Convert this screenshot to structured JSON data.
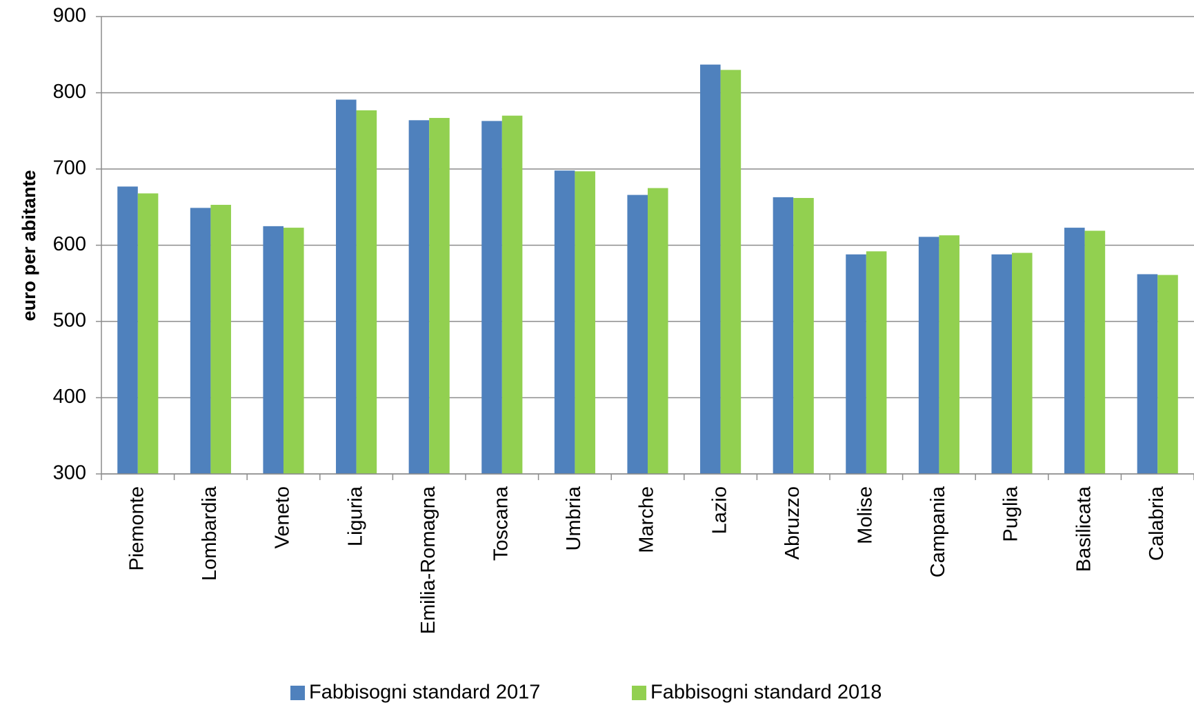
{
  "chart_data": {
    "type": "bar",
    "y_label": "euro per abitante",
    "categories": [
      "Piemonte",
      "Lombardia",
      "Veneto",
      "Liguria",
      "Emilia-Romagna",
      "Toscana",
      "Umbria",
      "Marche",
      "Lazio",
      "Abruzzo",
      "Molise",
      "Campania",
      "Puglia",
      "Basilicata",
      "Calabria"
    ],
    "series": [
      {
        "name": "Fabbisogni standard 2017",
        "color": "#4f81bd",
        "values": [
          677,
          649,
          625,
          791,
          764,
          763,
          698,
          666,
          837,
          663,
          588,
          611,
          588,
          623,
          562
        ]
      },
      {
        "name": "Fabbisogni standard 2018",
        "color": "#92d050",
        "values": [
          668,
          653,
          623,
          777,
          767,
          770,
          697,
          675,
          830,
          662,
          592,
          613,
          590,
          619,
          561
        ]
      }
    ],
    "ylim": [
      300,
      900
    ],
    "yticks": [
      300,
      400,
      500,
      600,
      700,
      800,
      900
    ],
    "grid": true,
    "legend": "bottom"
  }
}
